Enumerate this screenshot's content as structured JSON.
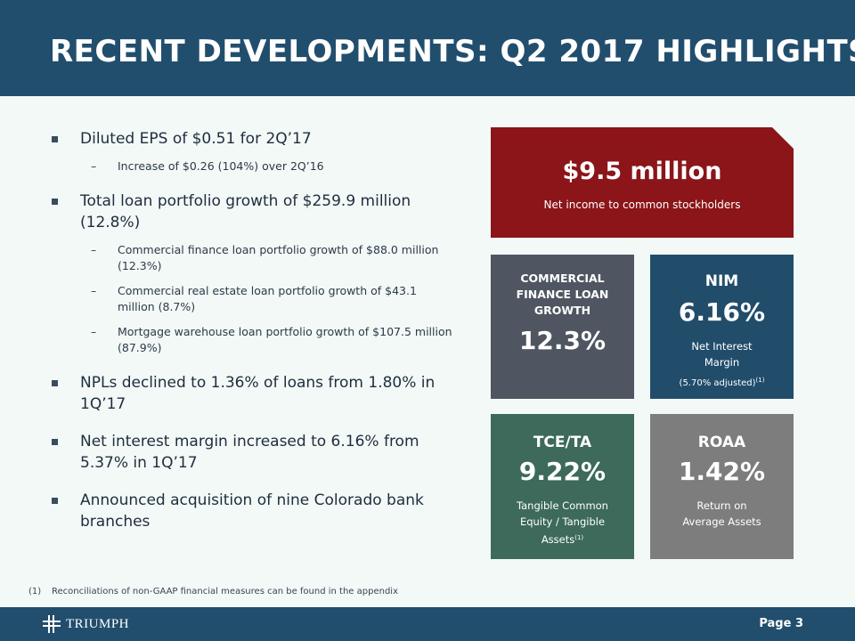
{
  "header": {
    "title": "RECENT DEVELOPMENTS: Q2 2017 HIGHLIGHTS"
  },
  "bullets": [
    {
      "text": "Diluted EPS of $0.51 for 2Q’17",
      "sub": [
        "Increase of $0.26 (104%) over 2Q’16"
      ]
    },
    {
      "text": "Total loan portfolio growth of $259.9 million (12.8%)",
      "sub": [
        "Commercial finance loan portfolio growth of $88.0 million (12.3%)",
        "Commercial real estate loan portfolio growth of $43.1 million (8.7%)",
        "Mortgage warehouse loan portfolio growth of $107.5 million (87.9%)"
      ]
    },
    {
      "text": "NPLs declined to 1.36% of loans from 1.80% in 1Q’17",
      "sub": []
    },
    {
      "text": "Net interest margin increased to 6.16% from 5.37% in 1Q’17",
      "sub": []
    },
    {
      "text": "Announced acquisition of nine Colorado bank branches",
      "sub": []
    }
  ],
  "tiles": {
    "net_income": {
      "value": "$9.5 million",
      "label": "Net income to common stockholders",
      "color": "#8b1519"
    },
    "cf_growth": {
      "label_1": "COMMERCIAL",
      "label_2": "FINANCE LOAN",
      "label_3": "GROWTH",
      "value": "12.3%",
      "color": "#4f5662"
    },
    "nim": {
      "label": "NIM",
      "value": "6.16%",
      "desc_1": "Net Interest",
      "desc_2": "Margin",
      "note": "(5.70% adjusted)",
      "note_sup": "(1)",
      "color": "#214d6b"
    },
    "tce": {
      "label": "TCE/TA",
      "value": "9.22%",
      "desc_1": "Tangible Common",
      "desc_2": "Equity / Tangible",
      "desc_3": "Assets",
      "desc_sup": "(1)",
      "color": "#3d6a5a"
    },
    "roaa": {
      "label": "ROAA",
      "value": "1.42%",
      "desc_1": "Return on",
      "desc_2": "Average Assets",
      "color": "#7d7d7d"
    }
  },
  "footnote": {
    "number": "(1)",
    "text": "Reconciliations of non-GAAP financial measures can be found in the appendix"
  },
  "footer": {
    "logo_text": "TRIUMPH",
    "logo_icon": "triumph-cross-icon",
    "page_label": "Page 3"
  },
  "colors": {
    "header_bg": "#224e6e",
    "page_bg": "#f2f9f7"
  }
}
